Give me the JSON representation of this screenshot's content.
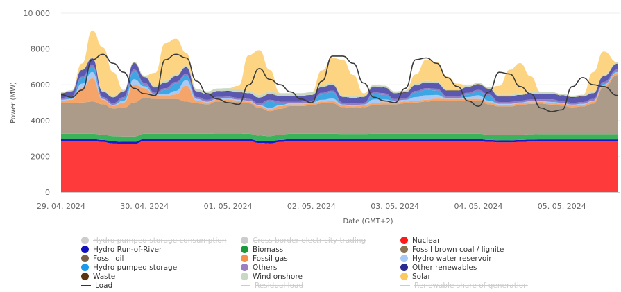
{
  "chart_data": {
    "type": "area",
    "stacked": true,
    "title": "",
    "xlabel": "Date (GMT+2)",
    "ylabel": "Power (MW)",
    "ylim": [
      0,
      10000
    ],
    "yticks": [
      0,
      2000,
      4000,
      6000,
      8000,
      10000
    ],
    "ytick_labels": [
      "0",
      "2000",
      "4000",
      "6000",
      "8000",
      "10 000"
    ],
    "xlim_hours": [
      0,
      160
    ],
    "xticks_hours": [
      0,
      24,
      48,
      72,
      96,
      120,
      144
    ],
    "xtick_labels": [
      "29. 04. 2024",
      "30. 04. 2024",
      "01. 05. 2024",
      "02. 05. 2024",
      "03. 05. 2024",
      "04. 05. 2024",
      "05. 05. 2024"
    ],
    "grid": true,
    "x_hours": [
      0,
      3,
      6,
      9,
      12,
      15,
      18,
      21,
      24,
      27,
      30,
      33,
      36,
      39,
      42,
      45,
      48,
      51,
      54,
      57,
      60,
      63,
      66,
      69,
      72,
      75,
      78,
      81,
      84,
      87,
      90,
      93,
      96,
      99,
      102,
      105,
      108,
      111,
      114,
      117,
      120,
      123,
      126,
      129,
      132,
      135,
      138,
      141,
      144,
      147,
      150,
      153,
      156,
      160
    ],
    "series": [
      {
        "name": "Nuclear",
        "color": "#ff3a3a",
        "values": [
          2850,
          2850,
          2850,
          2850,
          2800,
          2720,
          2700,
          2700,
          2850,
          2850,
          2850,
          2850,
          2850,
          2850,
          2850,
          2860,
          2860,
          2860,
          2850,
          2750,
          2720,
          2800,
          2850,
          2850,
          2850,
          2850,
          2850,
          2840,
          2840,
          2840,
          2850,
          2850,
          2850,
          2850,
          2850,
          2850,
          2850,
          2850,
          2850,
          2850,
          2850,
          2800,
          2780,
          2780,
          2800,
          2820,
          2830,
          2830,
          2830,
          2830,
          2830,
          2830,
          2830,
          2830
        ]
      },
      {
        "name": "Hydro Run-of-River",
        "color": "#1a1acc",
        "values": [
          110,
          110,
          110,
          110,
          110,
          110,
          110,
          110,
          110,
          110,
          110,
          110,
          110,
          110,
          110,
          110,
          110,
          110,
          110,
          110,
          110,
          110,
          110,
          110,
          110,
          110,
          110,
          110,
          110,
          110,
          110,
          110,
          110,
          110,
          110,
          110,
          110,
          110,
          110,
          110,
          110,
          110,
          110,
          110,
          110,
          110,
          110,
          110,
          110,
          110,
          110,
          110,
          110,
          110
        ]
      },
      {
        "name": "Biomass",
        "color": "#3cb35a",
        "values": [
          300,
          300,
          300,
          300,
          300,
          300,
          300,
          300,
          300,
          300,
          300,
          300,
          300,
          300,
          300,
          300,
          300,
          300,
          300,
          300,
          300,
          300,
          300,
          300,
          300,
          300,
          300,
          300,
          300,
          300,
          300,
          300,
          300,
          300,
          300,
          300,
          300,
          300,
          300,
          300,
          300,
          300,
          300,
          300,
          300,
          300,
          300,
          300,
          300,
          300,
          300,
          300,
          300,
          300
        ]
      },
      {
        "name": "Fossil brown coal / lignite",
        "color": "#ac9b88",
        "values": [
          1700,
          1700,
          1750,
          1800,
          1700,
          1550,
          1600,
          1900,
          2000,
          1950,
          1950,
          1950,
          1800,
          1700,
          1650,
          1800,
          1800,
          1750,
          1700,
          1550,
          1400,
          1450,
          1550,
          1550,
          1600,
          1700,
          1700,
          1500,
          1450,
          1500,
          1600,
          1650,
          1650,
          1700,
          1750,
          1800,
          1850,
          1850,
          1850,
          1850,
          1850,
          1700,
          1600,
          1600,
          1650,
          1700,
          1700,
          1650,
          1600,
          1500,
          1550,
          1700,
          2600,
          3300
        ]
      },
      {
        "name": "Fossil oil",
        "color": "#7a6148",
        "values": [
          0,
          0,
          0,
          0,
          0,
          0,
          0,
          0,
          0,
          0,
          0,
          0,
          0,
          0,
          0,
          0,
          0,
          0,
          0,
          0,
          0,
          0,
          0,
          0,
          0,
          0,
          0,
          0,
          0,
          0,
          0,
          0,
          0,
          0,
          0,
          0,
          0,
          0,
          0,
          0,
          0,
          0,
          0,
          0,
          0,
          0,
          0,
          0,
          0,
          0,
          0,
          0,
          0,
          0
        ]
      },
      {
        "name": "Fossil gas",
        "color": "#f5a56a",
        "values": [
          150,
          200,
          800,
          1300,
          250,
          150,
          300,
          1000,
          550,
          200,
          150,
          250,
          900,
          150,
          100,
          100,
          120,
          100,
          100,
          100,
          100,
          150,
          100,
          100,
          100,
          100,
          120,
          100,
          100,
          100,
          120,
          120,
          100,
          100,
          100,
          100,
          120,
          100,
          100,
          100,
          100,
          120,
          100,
          100,
          100,
          100,
          100,
          100,
          100,
          100,
          100,
          120,
          120,
          120
        ]
      },
      {
        "name": "Hydro water reservoir",
        "color": "#a8c8f5",
        "values": [
          50,
          50,
          250,
          350,
          50,
          50,
          100,
          300,
          100,
          50,
          100,
          200,
          300,
          100,
          50,
          50,
          50,
          50,
          50,
          50,
          80,
          50,
          50,
          50,
          50,
          100,
          150,
          50,
          50,
          50,
          200,
          150,
          100,
          100,
          200,
          250,
          200,
          50,
          50,
          100,
          200,
          80,
          50,
          50,
          50,
          50,
          50,
          50,
          50,
          50,
          50,
          50,
          50,
          50
        ]
      },
      {
        "name": "Hydro pumped storage",
        "color": "#3ca7e3",
        "values": [
          0,
          50,
          300,
          300,
          0,
          0,
          100,
          450,
          100,
          0,
          250,
          400,
          250,
          0,
          0,
          0,
          0,
          0,
          0,
          0,
          350,
          100,
          0,
          0,
          0,
          300,
          350,
          0,
          0,
          0,
          300,
          250,
          0,
          0,
          250,
          300,
          250,
          0,
          0,
          150,
          200,
          250,
          0,
          0,
          0,
          0,
          0,
          50,
          0,
          0,
          0,
          0,
          50,
          50
        ]
      },
      {
        "name": "Others",
        "color": "#8f7cc2",
        "values": [
          100,
          100,
          100,
          100,
          100,
          100,
          100,
          100,
          100,
          100,
          100,
          100,
          100,
          100,
          100,
          100,
          100,
          100,
          100,
          100,
          100,
          100,
          100,
          100,
          100,
          100,
          100,
          100,
          100,
          100,
          100,
          100,
          100,
          100,
          100,
          100,
          100,
          100,
          100,
          100,
          100,
          100,
          100,
          100,
          100,
          100,
          100,
          100,
          100,
          100,
          100,
          100,
          100,
          100
        ]
      },
      {
        "name": "Other renewables",
        "color": "#5a58b0",
        "values": [
          250,
          250,
          350,
          350,
          280,
          300,
          300,
          350,
          300,
          280,
          300,
          300,
          350,
          300,
          300,
          300,
          300,
          300,
          300,
          300,
          300,
          300,
          300,
          300,
          300,
          300,
          300,
          300,
          300,
          300,
          300,
          300,
          300,
          300,
          300,
          300,
          300,
          300,
          300,
          300,
          300,
          300,
          300,
          300,
          300,
          300,
          300,
          300,
          300,
          300,
          300,
          300,
          300,
          300
        ]
      },
      {
        "name": "Waste",
        "color": "#5a3510",
        "values": [
          20,
          20,
          20,
          20,
          20,
          20,
          20,
          20,
          20,
          20,
          20,
          20,
          20,
          20,
          20,
          20,
          20,
          20,
          20,
          20,
          20,
          20,
          20,
          20,
          20,
          20,
          20,
          20,
          20,
          20,
          20,
          20,
          20,
          20,
          20,
          20,
          20,
          20,
          20,
          20,
          20,
          20,
          20,
          20,
          20,
          20,
          20,
          20,
          20,
          20,
          20,
          20,
          20,
          20
        ]
      },
      {
        "name": "Wind onshore",
        "color": "#c9d8c2",
        "values": [
          60,
          60,
          60,
          60,
          80,
          100,
          80,
          60,
          80,
          100,
          100,
          100,
          100,
          120,
          150,
          150,
          150,
          150,
          130,
          150,
          150,
          150,
          150,
          150,
          150,
          120,
          100,
          80,
          80,
          100,
          100,
          100,
          100,
          100,
          100,
          80,
          80,
          80,
          80,
          80,
          80,
          80,
          80,
          80,
          80,
          80,
          80,
          80,
          80,
          80,
          80,
          80,
          80,
          80
        ]
      },
      {
        "name": "Solar",
        "color": "#fdd582",
        "values": [
          0,
          0,
          300,
          1500,
          2400,
          1300,
          0,
          0,
          0,
          700,
          2100,
          2000,
          700,
          0,
          0,
          0,
          0,
          200,
          2000,
          2500,
          1200,
          0,
          0,
          0,
          0,
          800,
          1400,
          2000,
          1200,
          100,
          0,
          0,
          0,
          0,
          500,
          1200,
          1100,
          700,
          300,
          0,
          0,
          0,
          500,
          1400,
          1700,
          900,
          0,
          0,
          0,
          0,
          0,
          1100,
          1300,
          0
        ]
      }
    ],
    "lines": [
      {
        "name": "Load",
        "color": "#3a3a3a",
        "values": [
          5450,
          5300,
          5700,
          7400,
          7700,
          7200,
          6700,
          5800,
          5500,
          5400,
          7400,
          7700,
          7500,
          6200,
          5500,
          5200,
          5000,
          4900,
          6000,
          6900,
          6300,
          6000,
          5600,
          5200,
          5000,
          6200,
          7600,
          7600,
          7200,
          6100,
          5300,
          5100,
          5000,
          5800,
          7400,
          7500,
          7200,
          6400,
          5900,
          5100,
          4800,
          5600,
          6700,
          6600,
          5900,
          5500,
          4700,
          4500,
          4600,
          5900,
          6400,
          6000,
          5900,
          5400
        ]
      },
      {
        "name": "Residual load",
        "color": "#cccccc",
        "hidden": true,
        "values": []
      },
      {
        "name": "Renewable share of generation",
        "color": "#cccccc",
        "hidden": true,
        "values": []
      }
    ]
  },
  "legend": {
    "items": [
      {
        "label": "Hydro pumped storage consumption",
        "color": "#cccccc",
        "kind": "dot",
        "hidden": true
      },
      {
        "label": "Cross border electricity trading",
        "color": "#cccccc",
        "kind": "dot",
        "hidden": true
      },
      {
        "label": "Nuclear",
        "color": "#ff1a1a",
        "kind": "dot",
        "hidden": false
      },
      {
        "label": "Hydro Run-of-River",
        "color": "#1010c0",
        "kind": "dot",
        "hidden": false
      },
      {
        "label": "Biomass",
        "color": "#1a9a3a",
        "kind": "dot",
        "hidden": false
      },
      {
        "label": "Fossil brown coal / lignite",
        "color": "#8b7355",
        "kind": "dot",
        "hidden": false
      },
      {
        "label": "Fossil oil",
        "color": "#7a6148",
        "kind": "dot",
        "hidden": false
      },
      {
        "label": "Fossil gas",
        "color": "#f5914a",
        "kind": "dot",
        "hidden": false
      },
      {
        "label": "Hydro water reservoir",
        "color": "#a8c8f5",
        "kind": "dot",
        "hidden": false
      },
      {
        "label": "Hydro pumped storage",
        "color": "#1a9ae8",
        "kind": "dot",
        "hidden": false
      },
      {
        "label": "Others",
        "color": "#9a80c0",
        "kind": "dot",
        "hidden": false
      },
      {
        "label": "Other renewables",
        "color": "#2a2a90",
        "kind": "dot",
        "hidden": false
      },
      {
        "label": "Waste",
        "color": "#5a3510",
        "kind": "dot",
        "hidden": false
      },
      {
        "label": "Wind onshore",
        "color": "#c9d8c2",
        "kind": "dot",
        "hidden": false
      },
      {
        "label": "Solar",
        "color": "#fdc860",
        "kind": "dot",
        "hidden": false
      },
      {
        "label": "Load",
        "color": "#333333",
        "kind": "line",
        "hidden": false
      },
      {
        "label": "Residual load",
        "color": "#cccccc",
        "kind": "line",
        "hidden": true
      },
      {
        "label": "Renewable share of generation",
        "color": "#cccccc",
        "kind": "line",
        "hidden": true
      }
    ]
  }
}
